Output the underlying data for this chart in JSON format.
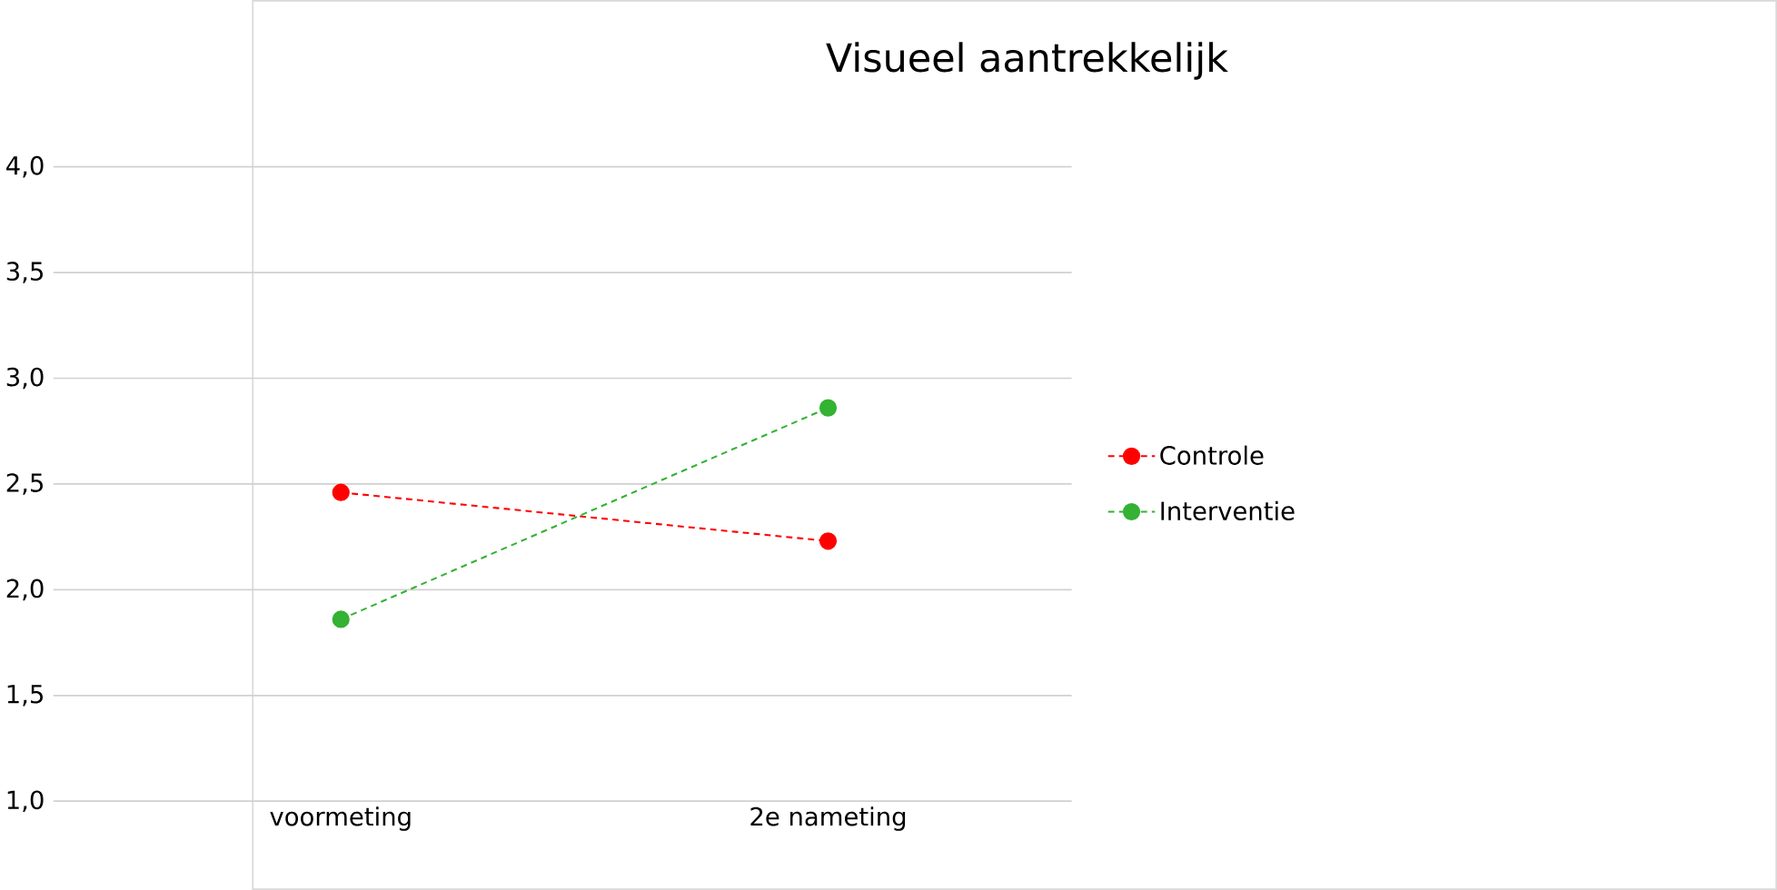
{
  "chart_data": {
    "type": "line",
    "title": "Visueel aantrekkelijk",
    "categories": [
      "voormeting",
      "2e nameting"
    ],
    "series": [
      {
        "name": "Controle",
        "color": "#ff0000",
        "values": [
          2.46,
          2.23
        ]
      },
      {
        "name": "Interventie",
        "color": "#33b233",
        "values": [
          1.86,
          2.86
        ]
      }
    ],
    "ylim": [
      1,
      4
    ],
    "yticks": [
      {
        "value": 1,
        "label": "1,0"
      },
      {
        "value": 1.5,
        "label": "1,5"
      },
      {
        "value": 2,
        "label": "2,0"
      },
      {
        "value": 2.5,
        "label": "2,5"
      },
      {
        "value": 3,
        "label": "3,0"
      },
      {
        "value": 3.5,
        "label": "3,5"
      },
      {
        "value": 4,
        "label": "4,0"
      }
    ],
    "grid": "y",
    "legend": "right",
    "marker": "circle",
    "line_style": "dashed"
  }
}
